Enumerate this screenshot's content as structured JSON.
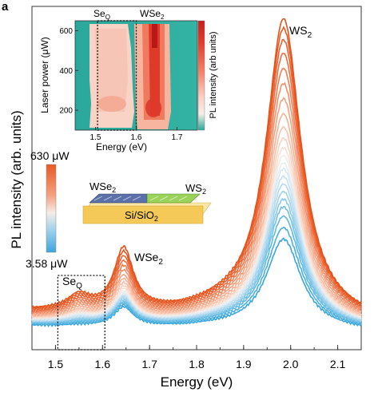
{
  "panel_label": "a",
  "chart_data": [
    {
      "type": "line",
      "xlabel": "Energy (eV)",
      "ylabel": "PL intensity (arb. units)",
      "xlim": [
        1.45,
        2.15
      ],
      "xticks": [
        1.5,
        1.6,
        1.7,
        1.8,
        1.9,
        2.0,
        2.1
      ],
      "x_tick_labels": [
        "1.5",
        "1.6",
        "1.7",
        "1.8",
        "1.9",
        "2.0",
        "2.1"
      ],
      "ylim": [
        0,
        1
      ],
      "yticks_shown": false,
      "grid": false,
      "peak_labels": {
        "ws2": "WS2",
        "wse2": "WSe2",
        "seq": "SeQ"
      },
      "colorbar": {
        "top_label": "630 μW",
        "bottom_label": "3.58 μW",
        "colors": [
          "#e8590c",
          "#f4a582",
          "#fde0d2",
          "#d6e8f5",
          "#9ecae1",
          "#3da5dc"
        ]
      },
      "seq_box_x_range": [
        1.505,
        1.605
      ],
      "schematic_labels": {
        "left": "WSe2",
        "right": "WS2",
        "substrate": "Si/SiO2"
      },
      "series_note": "22 spectra, laser power from 3.58 μW (blue) to 630 μW (orange)",
      "series": [
        {
          "ws2": 0.5,
          "wse2": 0.105,
          "seq": 0.005,
          "bg": 0.06,
          "color": "#38a6dd"
        },
        {
          "ws2": 0.56,
          "wse2": 0.11,
          "seq": 0.008,
          "bg": 0.065,
          "color": "#4aafe0"
        },
        {
          "ws2": 0.62,
          "wse2": 0.115,
          "seq": 0.01,
          "bg": 0.07,
          "color": "#5db8e3"
        },
        {
          "ws2": 0.67,
          "wse2": 0.12,
          "seq": 0.012,
          "bg": 0.072,
          "color": "#72c0e6"
        },
        {
          "ws2": 0.71,
          "wse2": 0.125,
          "seq": 0.014,
          "bg": 0.075,
          "color": "#88c9e9"
        },
        {
          "ws2": 0.75,
          "wse2": 0.13,
          "seq": 0.016,
          "bg": 0.078,
          "color": "#9dd1ec"
        },
        {
          "ws2": 0.79,
          "wse2": 0.135,
          "seq": 0.018,
          "bg": 0.08,
          "color": "#b1d9ef"
        },
        {
          "ws2": 0.83,
          "wse2": 0.14,
          "seq": 0.02,
          "bg": 0.083,
          "color": "#c4e1f1"
        },
        {
          "ws2": 0.87,
          "wse2": 0.145,
          "seq": 0.022,
          "bg": 0.086,
          "color": "#d6e8f3"
        },
        {
          "ws2": 0.9,
          "wse2": 0.15,
          "seq": 0.025,
          "bg": 0.089,
          "color": "#e6eef2"
        },
        {
          "ws2": 0.94,
          "wse2": 0.155,
          "seq": 0.028,
          "bg": 0.092,
          "color": "#f3ebe6"
        },
        {
          "ws2": 0.98,
          "wse2": 0.165,
          "seq": 0.032,
          "bg": 0.095,
          "color": "#f9e0d4"
        },
        {
          "ws2": 1.03,
          "wse2": 0.175,
          "seq": 0.036,
          "bg": 0.098,
          "color": "#f9d2c0"
        },
        {
          "ws2": 1.09,
          "wse2": 0.19,
          "seq": 0.04,
          "bg": 0.1,
          "color": "#f8c2aa"
        },
        {
          "ws2": 1.16,
          "wse2": 0.205,
          "seq": 0.045,
          "bg": 0.105,
          "color": "#f7b194"
        },
        {
          "ws2": 1.24,
          "wse2": 0.22,
          "seq": 0.05,
          "bg": 0.11,
          "color": "#f5a07e"
        },
        {
          "ws2": 1.32,
          "wse2": 0.24,
          "seq": 0.055,
          "bg": 0.115,
          "color": "#f38f69"
        },
        {
          "ws2": 1.4,
          "wse2": 0.26,
          "seq": 0.06,
          "bg": 0.12,
          "color": "#f07e54"
        },
        {
          "ws2": 1.48,
          "wse2": 0.28,
          "seq": 0.065,
          "bg": 0.125,
          "color": "#ed6e41"
        },
        {
          "ws2": 1.55,
          "wse2": 0.3,
          "seq": 0.07,
          "bg": 0.13,
          "color": "#ea6331"
        },
        {
          "ws2": 1.61,
          "wse2": 0.32,
          "seq": 0.075,
          "bg": 0.135,
          "color": "#e85a24"
        },
        {
          "ws2": 1.66,
          "wse2": 0.34,
          "seq": 0.08,
          "bg": 0.14,
          "color": "#e6531a"
        }
      ]
    },
    {
      "type": "heatmap",
      "xlabel": "Energy (eV)",
      "ylabel": "Laser power (μW)",
      "xlim": [
        1.45,
        1.75
      ],
      "ylim": [
        100,
        650
      ],
      "xticks": [
        1.5,
        1.6,
        1.7
      ],
      "x_tick_labels": [
        "1.5",
        "1.6",
        "1.7"
      ],
      "yticks": [
        200,
        400,
        600
      ],
      "y_tick_labels": [
        "200",
        "400",
        "600"
      ],
      "colorbar_label": "PL intensity (arb units)",
      "peak_labels": {
        "seq": "SeQ",
        "wse2": "WSe2"
      },
      "seq_box_x_range": [
        1.505,
        1.6
      ]
    }
  ]
}
